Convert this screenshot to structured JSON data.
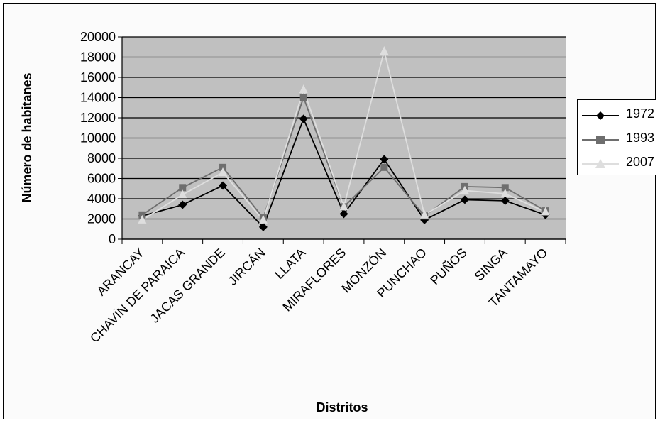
{
  "chart_data": {
    "type": "line",
    "title": "",
    "xlabel": "Distritos",
    "ylabel": "Número de habitanes",
    "ylim": [
      0,
      20000
    ],
    "yticks": [
      0,
      2000,
      4000,
      6000,
      8000,
      10000,
      12000,
      14000,
      16000,
      18000,
      20000
    ],
    "grid": true,
    "legend_position": "right",
    "categories": [
      "ARANCAY",
      "CHAVÍN DE PARAICA",
      "JACAS GRANDE",
      "JIRCÁN",
      "LLATA",
      "MIRAFLORES",
      "MONZÓN",
      "PUNCHAO",
      "PUÑOS",
      "SINGA",
      "TANTAMAYO"
    ],
    "series": [
      {
        "name": "1972",
        "color": "#000000",
        "marker": "diamond",
        "values": [
          2300,
          3400,
          5300,
          1200,
          11900,
          2500,
          7900,
          1900,
          3900,
          3800,
          2400
        ]
      },
      {
        "name": "1993",
        "color": "#6e6e6e",
        "marker": "square",
        "values": [
          2400,
          5100,
          7100,
          2100,
          14000,
          3200,
          7100,
          2300,
          5200,
          5100,
          2800
        ]
      },
      {
        "name": "2007",
        "color": "#dedede",
        "marker": "triangle",
        "values": [
          1900,
          4400,
          6600,
          1900,
          14800,
          3200,
          18600,
          2400,
          4800,
          4500,
          2700
        ]
      }
    ]
  }
}
